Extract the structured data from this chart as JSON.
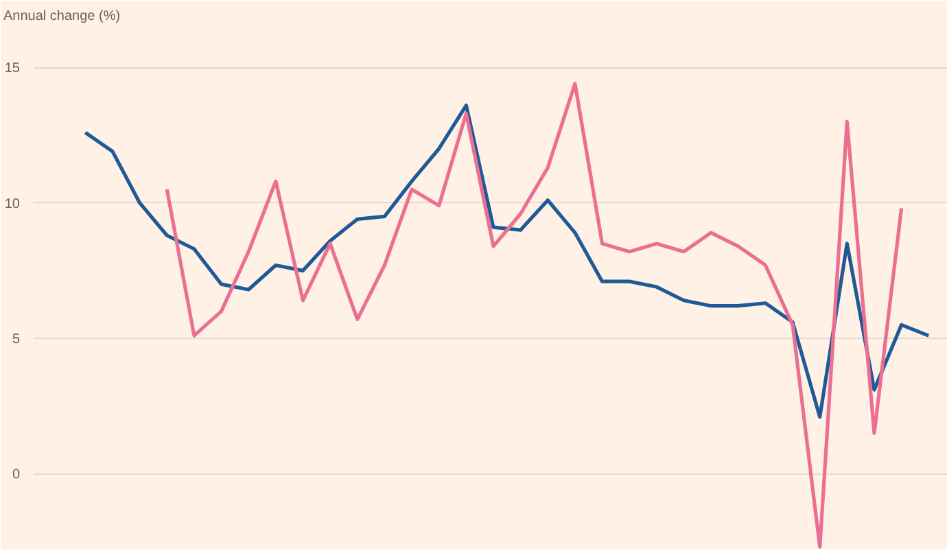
{
  "chart_data": {
    "type": "line",
    "ylabel": "Annual change (%)",
    "categories": [
      null,
      null,
      null,
      null,
      null,
      null,
      null,
      null,
      null,
      null,
      null,
      null,
      null,
      null,
      null,
      null,
      null,
      null,
      null,
      null,
      null,
      null,
      null,
      null,
      null,
      null,
      null,
      null,
      null,
      null,
      null,
      null
    ],
    "series": [
      {
        "color": "#1f5a96",
        "values": [
          12.6,
          11.9,
          10.0,
          8.8,
          8.3,
          7.0,
          6.8,
          7.7,
          7.5,
          8.6,
          9.4,
          9.5,
          10.8,
          12.0,
          13.6,
          9.1,
          9.0,
          10.1,
          8.9,
          7.1,
          7.1,
          6.9,
          6.4,
          6.2,
          6.2,
          6.3,
          5.6,
          2.1,
          8.5,
          3.1,
          5.5,
          5.1
        ]
      },
      {
        "color": "#eb6f92",
        "values": [
          null,
          null,
          null,
          10.5,
          5.1,
          6.0,
          8.2,
          10.8,
          6.4,
          8.5,
          5.7,
          7.7,
          10.5,
          9.9,
          13.3,
          8.4,
          9.6,
          11.3,
          14.4,
          8.5,
          8.2,
          8.5,
          8.2,
          8.9,
          8.4,
          7.7,
          5.5,
          -2.7,
          13.0,
          1.5,
          9.8,
          null
        ]
      }
    ],
    "ylim": [
      -2.8,
      16.4
    ],
    "yticks": [
      0,
      5,
      10,
      15
    ],
    "grid": "y",
    "tick_labels": "y"
  }
}
